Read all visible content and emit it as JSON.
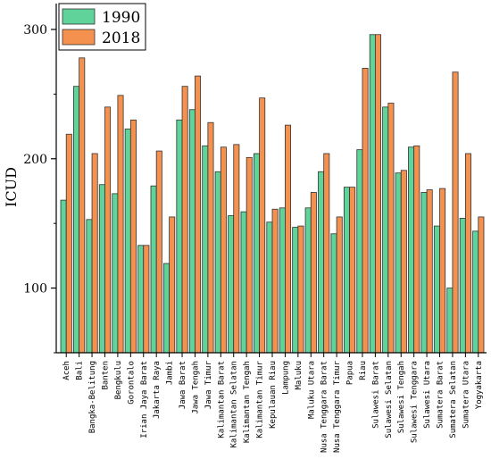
{
  "chart_data": {
    "type": "bar",
    "ylabel": "ICUD",
    "xlabel": "",
    "ylim": [
      50,
      320
    ],
    "yticks": [
      100,
      200,
      300
    ],
    "legend_position": "top-left",
    "categories": [
      "Aceh",
      "Bali",
      "Bangka-Belitung",
      "Banten",
      "Bengkulu",
      "Gorontalo",
      "Irian Jaya Barat",
      "Jakarta Raya",
      "Jambi",
      "Jawa Barat",
      "Jawa Tengah",
      "Jawa Timur",
      "Kalimantan Barat",
      "Kalimantan Selatan",
      "Kalimantan Tengah",
      "Kalimantan Timur",
      "Kepulauan Riau",
      "Lampung",
      "Maluku",
      "Maluku Utara",
      "Nusa Tenggara Barat",
      "Nusa Tenggara Timur",
      "Papua",
      "Riau",
      "Sulawesi Barat",
      "Sulawesi Selatan",
      "Sulawesi Tengah",
      "Sulawesi Tenggara",
      "Sulawesi Utara",
      "Sumatera Barat",
      "Sumatera Selatan",
      "Sumatera Utara",
      "Yogyakarta"
    ],
    "series": [
      {
        "name": "1990",
        "color": "#5fd39a",
        "values": [
          168,
          256,
          153,
          180,
          173,
          223,
          133,
          179,
          119,
          230,
          238,
          210,
          190,
          156,
          159,
          204,
          151,
          162,
          147,
          162,
          190,
          142,
          178,
          207,
          296,
          240,
          189,
          209,
          174,
          148,
          100,
          154,
          144
        ]
      },
      {
        "name": "2018",
        "color": "#f5914f",
        "values": [
          219,
          278,
          204,
          240,
          249,
          230,
          133,
          206,
          155,
          256,
          264,
          228,
          209,
          211,
          201,
          247,
          161,
          226,
          148,
          174,
          204,
          155,
          178,
          270,
          296,
          243,
          191,
          210,
          176,
          177,
          267,
          204,
          155
        ]
      }
    ]
  }
}
